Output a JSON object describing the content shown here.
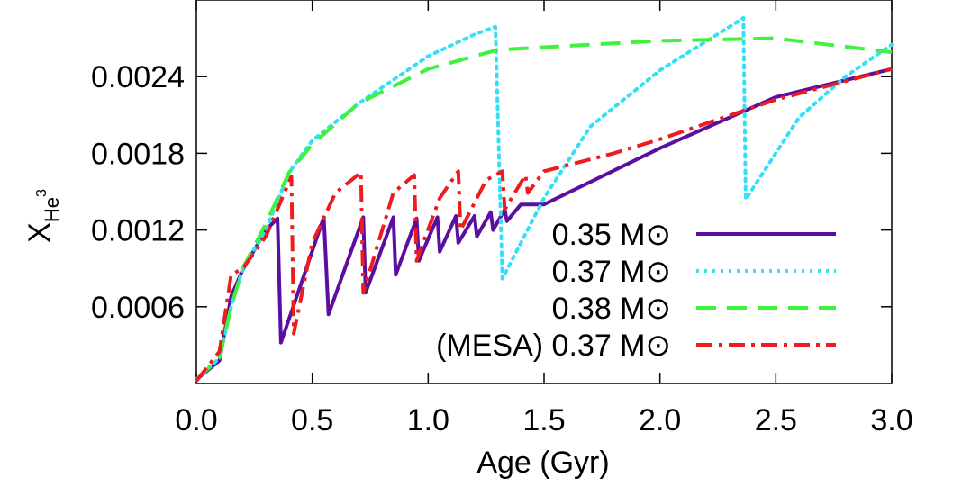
{
  "chart_data": {
    "type": "line",
    "xlabel": "Age (Gyr)",
    "ylabel": {
      "base": "X",
      "sub": "He",
      "sup": "3"
    },
    "xlim": [
      0,
      3
    ],
    "ylim": [
      0,
      0.003
    ],
    "xticks": [
      {
        "value": 0,
        "label": "0.0"
      },
      0.5,
      {
        "value": 1,
        "label": "1.0"
      },
      1.5,
      {
        "value": 2,
        "label": "2.0"
      },
      2.5,
      {
        "value": 3,
        "label": "3.0"
      }
    ],
    "yticks": [
      0.0006,
      0.0012,
      0.0018,
      0.0024
    ],
    "legend": "lower-right",
    "series": [
      {
        "name": "0.35 M⊙",
        "color": "#5b0fa0",
        "style": "solid",
        "x": [
          0,
          0.1,
          0.15,
          0.2,
          0.3,
          0.35,
          0.365,
          0.55,
          0.57,
          0.72,
          0.73,
          0.85,
          0.86,
          0.95,
          0.96,
          1.04,
          1.05,
          1.12,
          1.13,
          1.2,
          1.21,
          1.27,
          1.28,
          1.33,
          1.34,
          1.4,
          1.5,
          2.0,
          2.5,
          3.0
        ],
        "values": [
          3e-05,
          0.00018,
          0.00068,
          0.00089,
          0.0012,
          0.00129,
          0.00032,
          0.0013,
          0.00054,
          0.0013,
          0.00071,
          0.0013,
          0.00085,
          0.00129,
          0.00096,
          0.0013,
          0.00103,
          0.00131,
          0.0011,
          0.00131,
          0.00115,
          0.00134,
          0.0012,
          0.00136,
          0.00127,
          0.0014,
          0.0014,
          0.00184,
          0.00224,
          0.00246
        ]
      },
      {
        "name": "0.37 M⊙",
        "color": "#33e0f5",
        "style": "dotted",
        "x": [
          0,
          0.1,
          0.15,
          0.2,
          0.3,
          0.4,
          0.5,
          0.7,
          1.0,
          1.2,
          1.29,
          1.32,
          1.5,
          1.7,
          2.0,
          2.3,
          2.36,
          2.37,
          2.6,
          2.8,
          3.0
        ],
        "values": [
          3e-05,
          0.0002,
          0.0006,
          0.0009,
          0.0012,
          0.00165,
          0.0019,
          0.00219,
          0.00256,
          0.00273,
          0.00279,
          0.00082,
          0.00145,
          0.00201,
          0.00245,
          0.00279,
          0.00286,
          0.00144,
          0.00208,
          0.0024,
          0.00265
        ]
      },
      {
        "name": "0.38 M⊙",
        "color": "#3ef23e",
        "style": "dashed",
        "x": [
          0,
          0.1,
          0.15,
          0.2,
          0.3,
          0.4,
          0.5,
          0.7,
          1.0,
          1.3,
          1.5,
          2.0,
          2.5,
          3.0
        ],
        "values": [
          3e-05,
          0.0002,
          0.0006,
          0.0009,
          0.00125,
          0.00165,
          0.00187,
          0.00219,
          0.00246,
          0.00261,
          0.00263,
          0.00268,
          0.0027,
          0.00259
        ]
      },
      {
        "name": "(MESA) 0.37 M⊙",
        "color": "#ee1c1c",
        "style": "dashdot",
        "x": [
          0,
          0.1,
          0.15,
          0.2,
          0.3,
          0.41,
          0.42,
          0.5,
          0.6,
          0.71,
          0.72,
          0.85,
          0.94,
          0.95,
          1.05,
          1.13,
          1.14,
          1.25,
          1.32,
          1.33,
          1.42,
          1.43,
          1.5,
          1.8,
          2.0,
          2.5,
          3.0
        ],
        "values": [
          2e-05,
          0.00025,
          0.00085,
          0.0009,
          0.00115,
          0.00162,
          0.00039,
          0.0011,
          0.00149,
          0.00165,
          0.00071,
          0.00149,
          0.00163,
          0.00096,
          0.00145,
          0.00166,
          0.0012,
          0.00159,
          0.00166,
          0.00136,
          0.00163,
          0.00149,
          0.00166,
          0.0018,
          0.00191,
          0.00222,
          0.00246
        ]
      }
    ]
  }
}
